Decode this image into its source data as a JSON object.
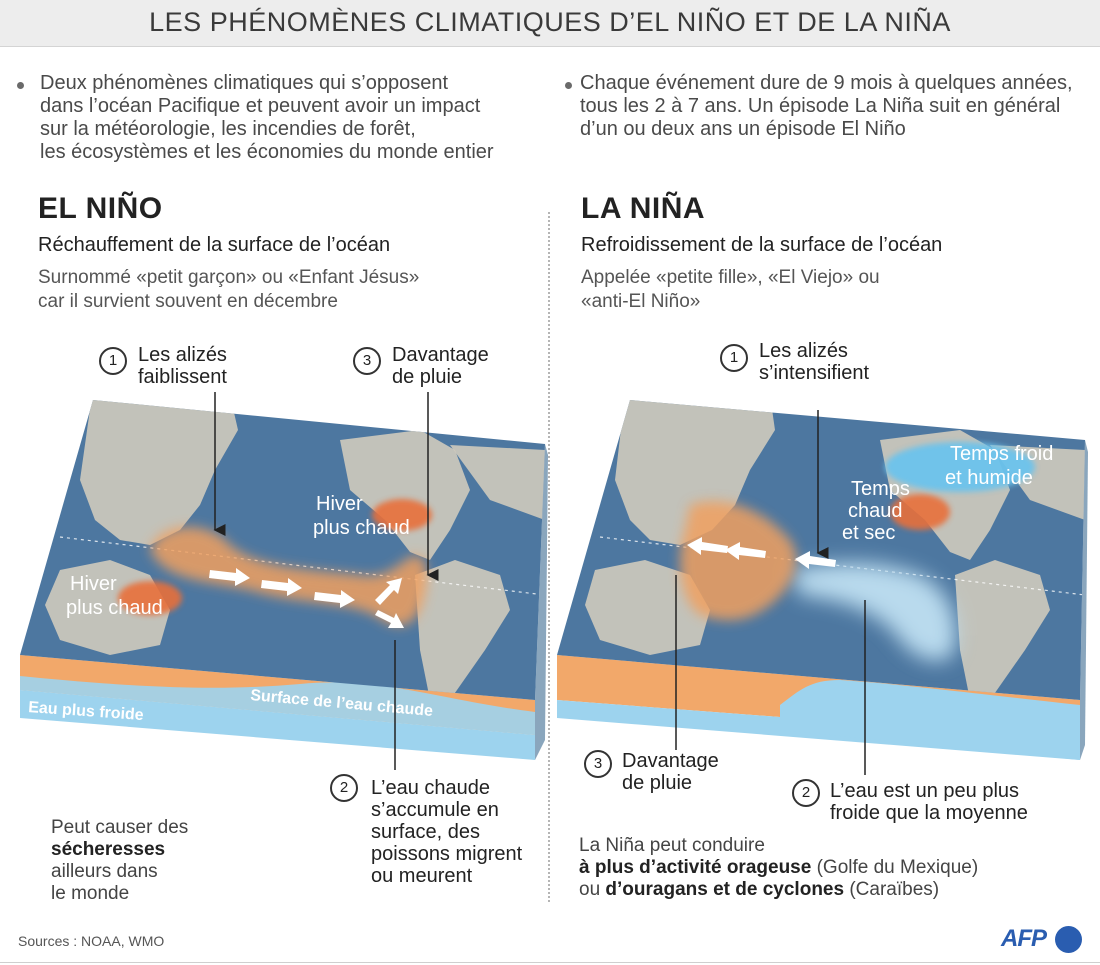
{
  "header": {
    "title": "LES PHÉNOMÈNES CLIMATIQUES D’EL NIÑO ET DE LA NIÑA"
  },
  "intro": {
    "left": [
      "Deux phénomènes climatiques qui s’opposent",
      "dans l’océan Pacifique et peuvent avoir un impact",
      "sur la météorologie, les incendies de forêt,",
      "les écosystèmes et les économies du monde entier"
    ],
    "right": [
      "Chaque événement dure de 9 mois à quelques années,",
      "tous les 2 à 7 ans. Un épisode La Niña suit en général",
      "d’un ou deux ans un épisode El Niño"
    ]
  },
  "el_nino": {
    "title": "EL NIÑO",
    "subtitle": "Réchauffement de la surface de l’océan",
    "desc": [
      "Surnommé «petit garçon» ou «Enfant Jésus»",
      "car il survient souvent en décembre"
    ],
    "callouts": [
      {
        "num": "1",
        "lines": [
          "Les alizés",
          "faiblissent"
        ]
      },
      {
        "num": "3",
        "lines": [
          "Davantage",
          "de pluie"
        ]
      },
      {
        "num": "2",
        "lines": [
          "L’eau chaude",
          "s’accumule en",
          "surface, des",
          "poissons migrent",
          "ou meurent"
        ]
      }
    ],
    "map_labels": {
      "winter_north": [
        "Hiver",
        "plus chaud"
      ],
      "winter_south": [
        "Hiver",
        "plus chaud"
      ]
    },
    "strip_labels": {
      "cold": "Eau plus froide",
      "warm": "Surface de l’eau chaude"
    },
    "note": {
      "line1": "Peut causer des",
      "bold": "sécheresses",
      "line3": "ailleurs dans",
      "line4": "le monde"
    }
  },
  "la_nina": {
    "title": "LA NIÑA",
    "subtitle": "Refroidissement de la surface de l’océan",
    "desc": [
      "Appelée «petite fille», «El Viejo» ou",
      "«anti-El Niño»"
    ],
    "callouts": [
      {
        "num": "1",
        "lines": [
          "Les alizés",
          "s’intensifient"
        ]
      },
      {
        "num": "3",
        "lines": [
          "Davantage",
          "de pluie"
        ]
      },
      {
        "num": "2",
        "lines": [
          "L’eau est un peu plus",
          "froide que la moyenne"
        ]
      }
    ],
    "map_labels": {
      "cold_humid": [
        "Temps froid",
        "et humide"
      ],
      "hot_dry": [
        "Temps",
        "chaud",
        "et sec"
      ]
    },
    "note": {
      "line1": "La Niña peut conduire",
      "bold1": "à plus d’activité orageuse",
      "rest1": " (Golfe du Mexique)",
      "pre2": "ou ",
      "bold2": "d’ouragans et de cyclones",
      "rest2": " (Caraïbes)"
    }
  },
  "footer": {
    "sources": "Sources : NOAA, WMO",
    "logo": "AFP"
  },
  "colors": {
    "ocean": "#4d77a0",
    "land": "#cfcabd",
    "warm": "#f0a060",
    "hot": "#e8703a",
    "cold_water": "#9fd0ea",
    "cold_region": "#bfe0f2",
    "brand": "#2a5db0"
  }
}
